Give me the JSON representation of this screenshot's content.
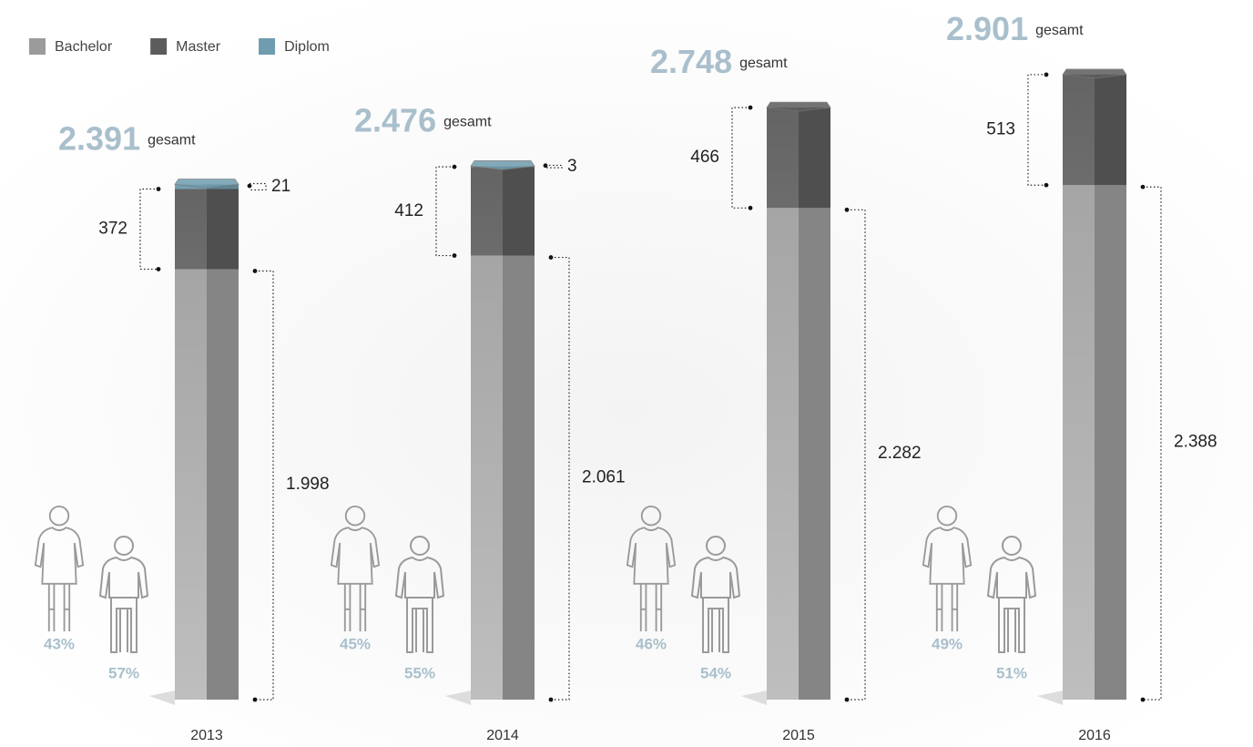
{
  "chart_data": {
    "type": "stacked-bar-3d",
    "categories": [
      "2013",
      "2014",
      "2015",
      "2016"
    ],
    "series": [
      {
        "name": "Bachelor",
        "color": "#9b9b9b",
        "values": [
          1998,
          2061,
          2282,
          2388
        ],
        "value_labels": [
          "1.998",
          "2.061",
          "2.282",
          "2.388"
        ]
      },
      {
        "name": "Master",
        "color": "#5c5c5c",
        "values": [
          372,
          412,
          466,
          513
        ]
      },
      {
        "name": "Diplom",
        "color": "#6f9cae",
        "values": [
          21,
          3,
          null,
          null
        ]
      }
    ],
    "totals": {
      "values": [
        2391,
        2476,
        2748,
        2901
      ],
      "value_labels": [
        "2.391",
        "2.476",
        "2.748",
        "2.901"
      ],
      "label": "gesamt",
      "color": "#a9bfcc"
    },
    "gender": {
      "color": "#a9bfcc",
      "series": [
        {
          "values": [
            43,
            45,
            46,
            49
          ],
          "value_labels": [
            "43%",
            "45%",
            "46%",
            "49%"
          ]
        },
        {
          "values": [
            57,
            55,
            54,
            51
          ],
          "value_labels": [
            "57%",
            "55%",
            "54%",
            "51%"
          ]
        }
      ]
    }
  }
}
